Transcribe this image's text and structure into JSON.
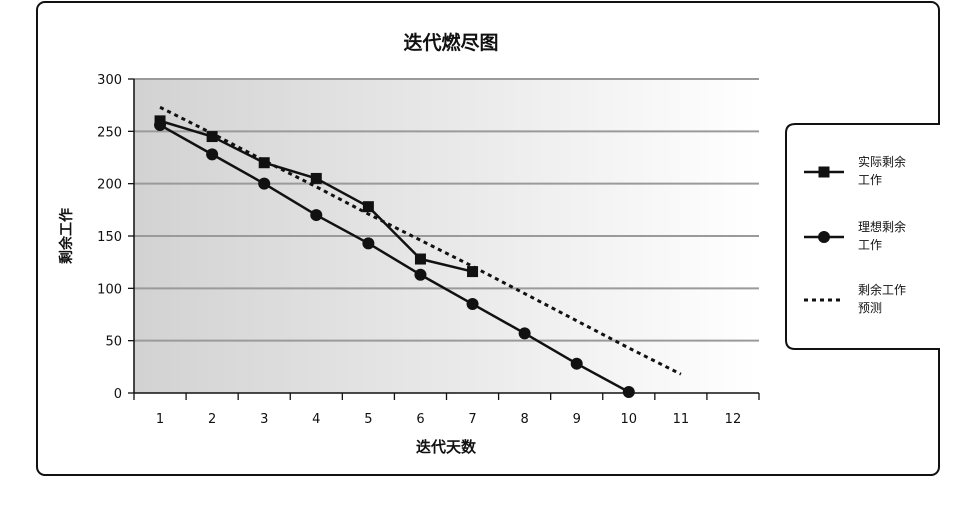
{
  "chart_data": {
    "type": "line",
    "title": "迭代燃尽图",
    "xlabel": "迭代天数",
    "ylabel": "剩余工作",
    "x": [
      1,
      2,
      3,
      4,
      5,
      6,
      7,
      8,
      9,
      10,
      11,
      12
    ],
    "xlim": [
      0.5,
      12.5
    ],
    "ylim": [
      0,
      300
    ],
    "yticks": [
      0,
      50,
      100,
      150,
      200,
      250,
      300
    ],
    "grid": true,
    "legend_position": "right",
    "series": [
      {
        "name": "实际剩余工作",
        "style": "solid-square",
        "x": [
          1,
          2,
          3,
          4,
          5,
          6,
          7
        ],
        "values": [
          260,
          245,
          220,
          205,
          178,
          128,
          116
        ]
      },
      {
        "name": "理想剩余工作",
        "style": "solid-circle",
        "x": [
          1,
          2,
          3,
          4,
          5,
          6,
          7,
          8,
          9,
          10
        ],
        "values": [
          256,
          228,
          200,
          170,
          143,
          113,
          85,
          57,
          28,
          1
        ]
      },
      {
        "name": "剩余工作预测",
        "style": "dotted",
        "x": [
          1,
          2,
          3,
          4,
          5,
          6,
          7,
          8,
          9,
          10,
          11
        ],
        "values": [
          273,
          248,
          222,
          197,
          171,
          146,
          121,
          95,
          69,
          43,
          18
        ]
      }
    ],
    "legend_lines": [
      [
        "实际剩余",
        "工作"
      ],
      [
        "理想剩余",
        "工作"
      ],
      [
        "剩余工作",
        "预测"
      ]
    ]
  }
}
